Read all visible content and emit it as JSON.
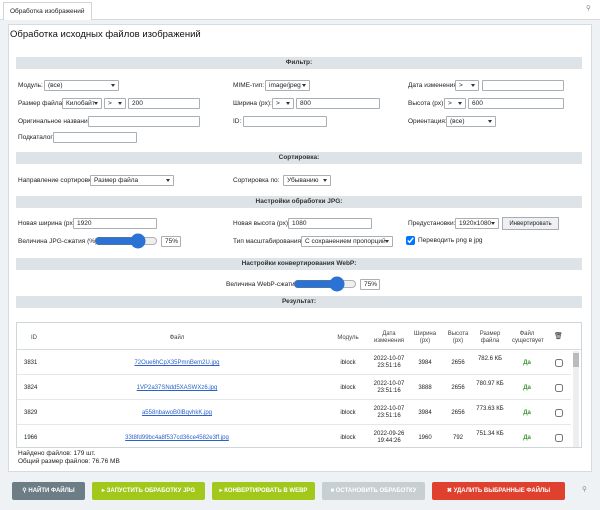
{
  "tab": "Обработка изображений",
  "title": "Обработка исходных файлов изображений",
  "filter": {
    "heading": "Фильтр:",
    "module": {
      "label": "Модуль:",
      "value": "(все)"
    },
    "mime": {
      "label": "MIME-тип:",
      "value": "image/jpeg"
    },
    "date": {
      "label": "Дата изменения:",
      "operator": ">"
    },
    "size": {
      "label": "Размер файла:",
      "unit": "Килобайт",
      "operator": ">",
      "value": "200"
    },
    "width": {
      "label": "Ширина (px):",
      "operator": ">",
      "value": "800"
    },
    "height": {
      "label": "Высота (px):",
      "operator": ">",
      "value": "600"
    },
    "original_name": {
      "label": "Оригинальное название:"
    },
    "id": {
      "label": "ID:"
    },
    "orientation": {
      "label": "Ориентация:",
      "value": "(все)"
    },
    "subdir": {
      "label": "Подкаталог:"
    }
  },
  "sorting": {
    "heading": "Сортировка:",
    "field": {
      "label": "Направление сортировки:",
      "value": "Размер файла"
    },
    "order": {
      "label": "Сортировка по:",
      "value": "Убыванию"
    }
  },
  "jpg": {
    "heading": "Настройки обработки JPG:",
    "new_width": {
      "label": "Новая ширина (px):",
      "value": "1920"
    },
    "new_height": {
      "label": "Новая высота (px):",
      "value": "1080"
    },
    "preset": {
      "label": "Предустановки:",
      "value": "1920x1080"
    },
    "invert": "Инвертировать",
    "quality": {
      "label": "Величина JPG-сжатия (%):",
      "value": 75,
      "value_label": "75%"
    },
    "scale": {
      "label": "Тип масштабирования:",
      "value": "С сохранением пропорций"
    },
    "png_to_jpg": {
      "label": "Переводить png в jpg",
      "checked": true
    }
  },
  "webp": {
    "heading": "Настройки конвертирования WebP:",
    "quality": {
      "label": "Величина WebP-сжатия (%):",
      "value": 75,
      "value_label": "75%"
    }
  },
  "result": {
    "heading": "Результат:",
    "columns": [
      "ID",
      "Файл",
      "Модуль",
      "Дата изменения",
      "Ширина (px)",
      "Высота (px)",
      "Размер файла",
      "Файл существует"
    ],
    "rows": [
      [
        "3831",
        "72Oue6hCpX35PmnBem2U.jpg",
        "iblock",
        "2022-10-07 23:51:16",
        "3984",
        "2656",
        "782.6 КБ",
        "Да"
      ],
      [
        "3824",
        "1VP2a37SNdd5XASWXz6.jpg",
        "iblock",
        "2022-10-07 23:51:16",
        "3888",
        "2656",
        "780.97 КБ",
        "Да"
      ],
      [
        "3829",
        "a558nbawoB0lBqvhkK.jpg",
        "iblock",
        "2022-10-07 23:51:16",
        "3984",
        "2656",
        "773.63 КБ",
        "Да"
      ],
      [
        "1966",
        "33t8fd99bc4a8f537cd36ce4582e3ff.jpg",
        "iblock",
        "2022-09-26 19:44:26",
        "1960",
        "792",
        "751.34 КБ",
        "Да"
      ]
    ],
    "found": "Найдено файлов: 179 шт.",
    "total": "Общий размер файлов: 76.76 MB"
  },
  "buttons": [
    "НАЙТИ ФАЙЛЫ",
    "ЗАПУСТИТЬ ОБРАБОТКУ JPG",
    "КОНВЕРТИРОВАТЬ В WEBP",
    "ОСТАНОВИТЬ ОБРАБОТКУ",
    "УДАЛИТЬ ВЫБРАННЫЕ ФАЙЛЫ"
  ]
}
